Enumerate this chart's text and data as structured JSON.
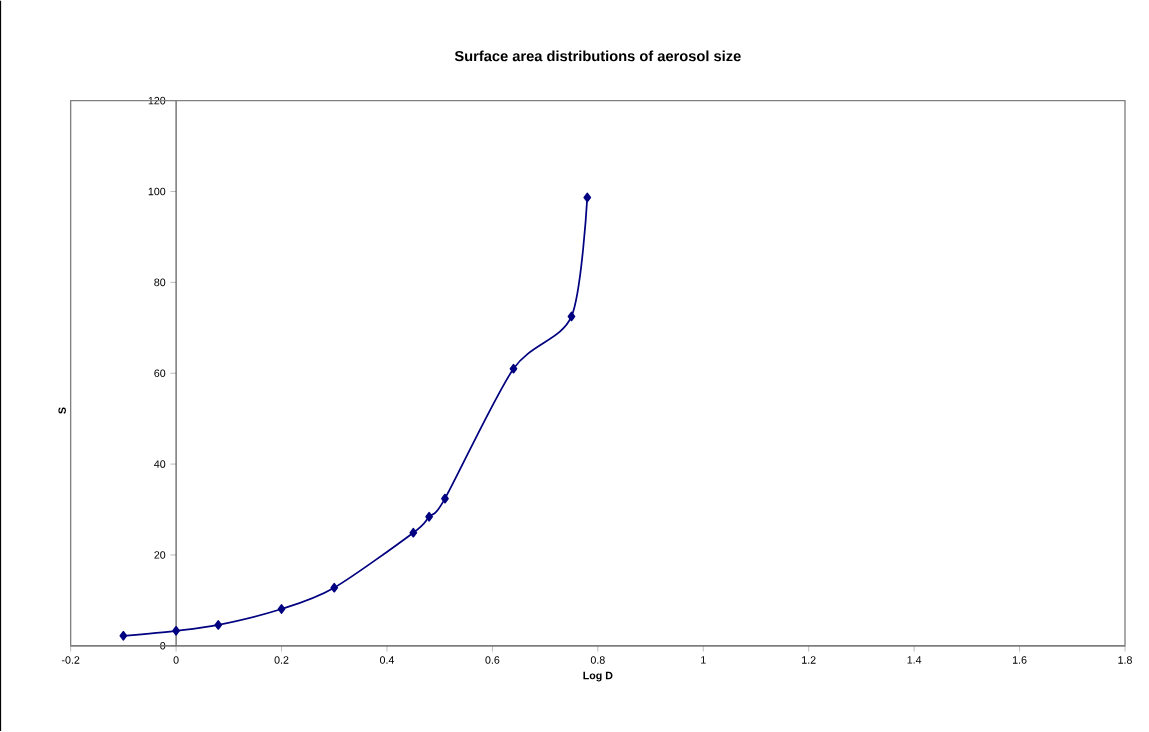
{
  "chart_data": {
    "type": "line",
    "title": "Surface area distributions of aerosol size",
    "xlabel": "Log D",
    "ylabel": "S",
    "x": [
      -0.1,
      0,
      0.08,
      0.2,
      0.3,
      0.45,
      0.48,
      0.51,
      0.64,
      0.75,
      0.78
    ],
    "values": [
      2.2,
      3.3,
      4.6,
      8.1,
      12.8,
      24.9,
      28.4,
      32.4,
      61,
      72.5,
      98.7
    ],
    "color": "#000080",
    "marker": "diamond",
    "line_style": "solid",
    "grid": false,
    "xlim": [
      -0.2,
      1.8
    ],
    "xticks": [
      -0.2,
      0,
      0.2,
      0.4,
      0.6,
      0.8,
      1,
      1.2,
      1.4,
      1.6,
      1.8
    ],
    "ylim": [
      0,
      120
    ],
    "yticks": [
      0,
      20,
      40,
      60,
      80,
      100,
      120
    ]
  }
}
